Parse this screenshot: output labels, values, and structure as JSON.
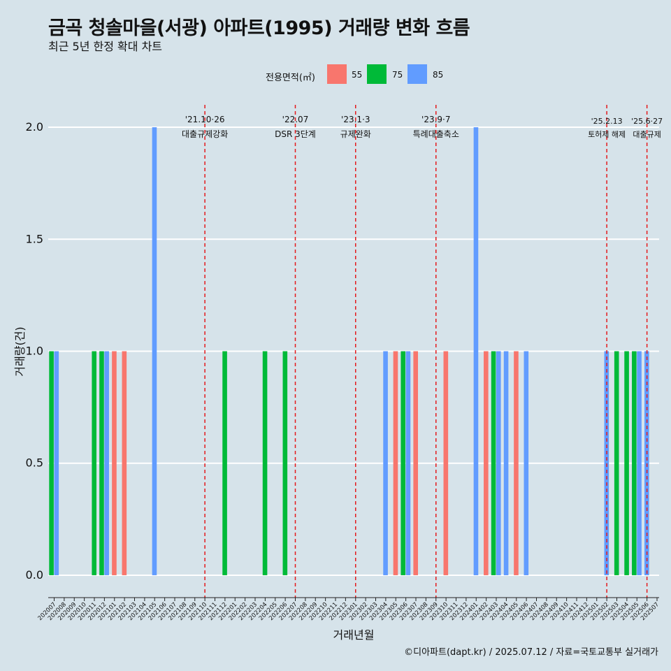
{
  "title": "금곡 청솔마을(서광) 아파트(1995) 거래량 변화 흐름",
  "subtitle": "최근 5년 한정 확대 차트",
  "caption": "©디아파트(dapt.kr) / 2025.07.12 / 자료=국토교통부 실거래가",
  "legend": {
    "title": "전용면적(㎡)",
    "items": [
      {
        "label": "55",
        "color": "#f8766d"
      },
      {
        "label": "75",
        "color": "#00ba38"
      },
      {
        "label": "85",
        "color": "#619cff"
      }
    ]
  },
  "colors": {
    "background": "#d6e3ea",
    "grid": "#ffffff",
    "event_line": "#e41a1c"
  },
  "chart_data": {
    "type": "bar",
    "xlabel": "거래년월",
    "ylabel": "거래량(건)",
    "ylim": [
      -0.1,
      2.1
    ],
    "yticks": [
      "0.0",
      "0.5",
      "1.0",
      "1.5",
      "2.0"
    ],
    "grid": true,
    "legend_position": "top",
    "months": [
      "202007",
      "202008",
      "202009",
      "202010",
      "202011",
      "202012",
      "202101",
      "202102",
      "202103",
      "202104",
      "202105",
      "202106",
      "202107",
      "202108",
      "202109",
      "202110",
      "202111",
      "202112",
      "202201",
      "202202",
      "202203",
      "202204",
      "202205",
      "202206",
      "202207",
      "202208",
      "202209",
      "202210",
      "202211",
      "202212",
      "202301",
      "202302",
      "202303",
      "202304",
      "202305",
      "202306",
      "202307",
      "202308",
      "202309",
      "202310",
      "202311",
      "202312",
      "202401",
      "202402",
      "202403",
      "202404",
      "202405",
      "202406",
      "202407",
      "202408",
      "202409",
      "202410",
      "202411",
      "202412",
      "202501",
      "202502",
      "202503",
      "202504",
      "202505",
      "202506",
      "202507"
    ],
    "series": [
      {
        "name": "55",
        "color": "#f8766d",
        "values": [
          0,
          0,
          0,
          0,
          0,
          0,
          1,
          1,
          0,
          0,
          0,
          0,
          0,
          0,
          0,
          0,
          0,
          0,
          0,
          0,
          0,
          0,
          0,
          0,
          0,
          0,
          0,
          0,
          0,
          0,
          0,
          0,
          0,
          0,
          1,
          0,
          1,
          0,
          0,
          1,
          0,
          0,
          0,
          1,
          0,
          0,
          1,
          0,
          0,
          0,
          0,
          0,
          0,
          0,
          0,
          0,
          0,
          0,
          0,
          0,
          0
        ]
      },
      {
        "name": "75",
        "color": "#00ba38",
        "values": [
          1,
          0,
          0,
          0,
          1,
          1,
          0,
          0,
          0,
          0,
          0,
          0,
          0,
          0,
          0,
          0,
          0,
          1,
          0,
          0,
          0,
          1,
          0,
          1,
          0,
          0,
          0,
          0,
          0,
          0,
          0,
          0,
          0,
          0,
          0,
          1,
          0,
          0,
          0,
          0,
          0,
          0,
          0,
          0,
          1,
          0,
          0,
          0,
          0,
          0,
          0,
          0,
          0,
          0,
          0,
          0,
          1,
          1,
          1,
          0,
          0
        ]
      },
      {
        "name": "85",
        "color": "#619cff",
        "values": [
          1,
          0,
          0,
          0,
          0,
          1,
          0,
          0,
          0,
          0,
          2,
          0,
          0,
          0,
          0,
          0,
          0,
          0,
          0,
          0,
          0,
          0,
          0,
          0,
          0,
          0,
          0,
          0,
          0,
          0,
          0,
          0,
          0,
          1,
          0,
          1,
          0,
          0,
          0,
          0,
          0,
          0,
          2,
          0,
          1,
          1,
          0,
          1,
          0,
          0,
          0,
          0,
          0,
          0,
          0,
          1,
          0,
          0,
          1,
          1,
          0
        ]
      }
    ],
    "events": [
      {
        "date": "202110",
        "label1": "'21.10·26",
        "label2": "대출규제강화"
      },
      {
        "date": "202207",
        "label1": "'22.07",
        "label2": "DSR 3단계"
      },
      {
        "date": "202301",
        "label1": "'23.1·3",
        "label2": "규제완화"
      },
      {
        "date": "202309",
        "label1": "'23.9·7",
        "label2": "특례대출축소"
      },
      {
        "date": "202502",
        "label1": "'25.2.13",
        "label2": "토허제 해제"
      },
      {
        "date": "202506",
        "label1": "'25.6·27",
        "label2": "대출규제"
      }
    ]
  }
}
